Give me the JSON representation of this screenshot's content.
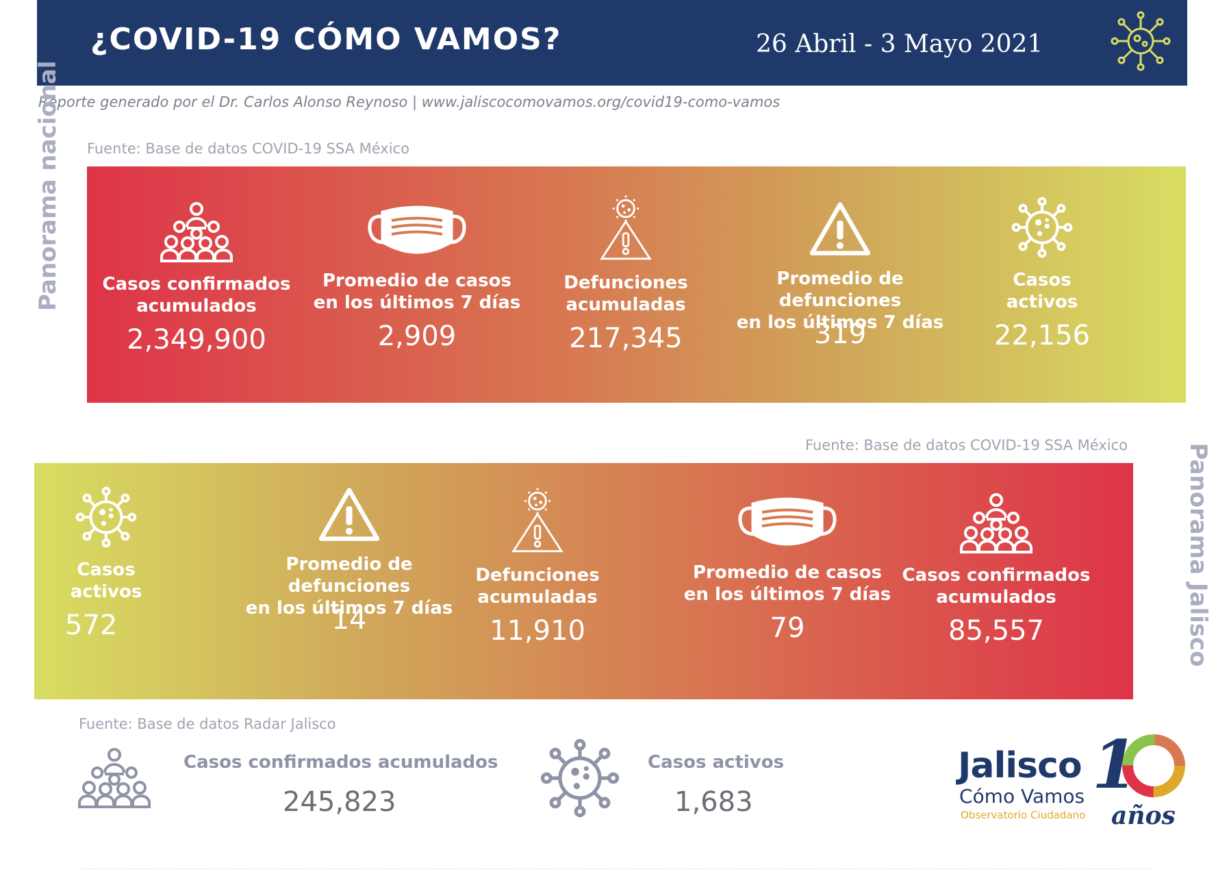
{
  "header": {
    "title": "¿COVID-19 CÓMO VAMOS?",
    "date_range": "26 Abril  - 3 Mayo 2021",
    "icon": "virus-icon"
  },
  "report_line": "Reporte generado por el Dr. Carlos Alonso Reynoso | www.jaliscocomovamos.org/covid19-como-vamos",
  "nacional": {
    "label": "Panorama nacional",
    "source": "Fuente: Base de datos COVID-19 SSA México",
    "stats": [
      {
        "icon": "people-icon",
        "label_1": "Casos confirmados",
        "label_2": "acumulados",
        "value": "2,349,900"
      },
      {
        "icon": "mask-icon",
        "label_1": "Promedio de casos",
        "label_2": "en los últimos 7 días",
        "value": "2,909"
      },
      {
        "icon": "virus-warning-icon",
        "label_1": "Defunciones",
        "label_2": "acumuladas",
        "value": "217,345"
      },
      {
        "icon": "warning-icon",
        "label_1": "Promedio de defunciones",
        "label_2": "en los últimos 7 días",
        "value": "319"
      },
      {
        "icon": "virus-icon",
        "label_1": "Casos",
        "label_2": "activos",
        "value": "22,156"
      }
    ]
  },
  "jalisco": {
    "label": "Panorama Jalisco",
    "source": "Fuente: Base de datos COVID-19 SSA México",
    "stats": [
      {
        "icon": "virus-icon",
        "label_1": "Casos",
        "label_2": "activos",
        "value": "572"
      },
      {
        "icon": "warning-icon",
        "label_1": "Promedio de defunciones",
        "label_2": "en los últimos 7 días",
        "value": "14"
      },
      {
        "icon": "virus-warning-icon",
        "label_1": "Defunciones",
        "label_2": "acumuladas",
        "value": "11,910"
      },
      {
        "icon": "mask-icon",
        "label_1": "Promedio de casos",
        "label_2": "en los últimos 7 días",
        "value": "79"
      },
      {
        "icon": "people-icon",
        "label_1": "Casos confirmados",
        "label_2": "acumulados",
        "value": "85,557"
      }
    ]
  },
  "radar": {
    "source": "Fuente: Base de datos Radar Jalisco",
    "confirmados_label": "Casos confirmados acumulados",
    "confirmados_value": "245,823",
    "activos_label": "Casos activos",
    "activos_value": "1,683"
  },
  "logo": {
    "name": "Jalisco",
    "subtitle": "Cómo Vamos",
    "tagline": "Observatorio Ciudadano",
    "ten": "1",
    "anos": "años"
  },
  "colors": {
    "header_bg": "#1f3a6a",
    "red": "#de3448",
    "yellow_green": "#d8dd62",
    "grey_label": "#a9aec0"
  }
}
